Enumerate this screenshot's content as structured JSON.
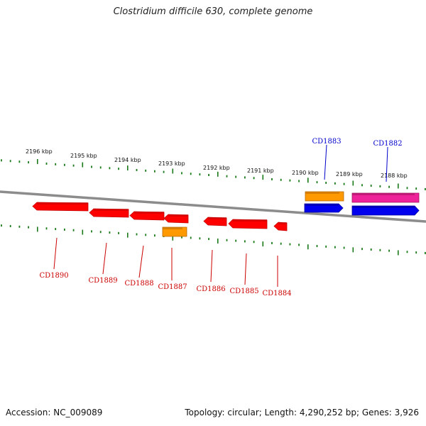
{
  "title": "Clostridium difficile 630, complete genome",
  "footer": {
    "accession": "Accession: NC_009089",
    "stats": "Topology: circular; Length: 4,290,252 bp; Genes: 3,926"
  },
  "colors": {
    "background": "#ffffff",
    "backbone": "#8c8c8c",
    "tick": "#1a7a1a",
    "reverse_gene": "#ff0000",
    "forward_gene": "#0000ee",
    "orange_gene": "#ff9900",
    "magenta_gene": "#ee2299",
    "reverse_label": "#cc0000",
    "forward_label": "#0000cc"
  },
  "scale": {
    "unit": "kbp",
    "major_labels": [
      "2196 kbp",
      "2195 kbp",
      "2194 kbp",
      "2193 kbp",
      "2192 kbp",
      "2191 kbp",
      "2190 kbp",
      "2189 kbp",
      "2188 kbp"
    ]
  },
  "genes": [
    {
      "name": "CD1882",
      "strand": "forward",
      "color": "magenta",
      "label_color": "forward"
    },
    {
      "name": "CD1883",
      "strand": "forward",
      "color": "orange",
      "label_color": "forward"
    },
    {
      "name": "CD1884",
      "strand": "reverse",
      "color": "red",
      "label_color": "reverse"
    },
    {
      "name": "CD1885",
      "strand": "reverse",
      "color": "red",
      "label_color": "reverse"
    },
    {
      "name": "CD1886",
      "strand": "reverse",
      "color": "red",
      "label_color": "reverse"
    },
    {
      "name": "CD1887",
      "strand": "reverse",
      "color": "orange",
      "label_color": "reverse"
    },
    {
      "name": "CD1888",
      "strand": "reverse",
      "color": "red",
      "label_color": "reverse"
    },
    {
      "name": "CD1889",
      "strand": "reverse",
      "color": "red",
      "label_color": "reverse"
    },
    {
      "name": "CD1890",
      "strand": "reverse",
      "color": "red",
      "label_color": "reverse"
    }
  ]
}
